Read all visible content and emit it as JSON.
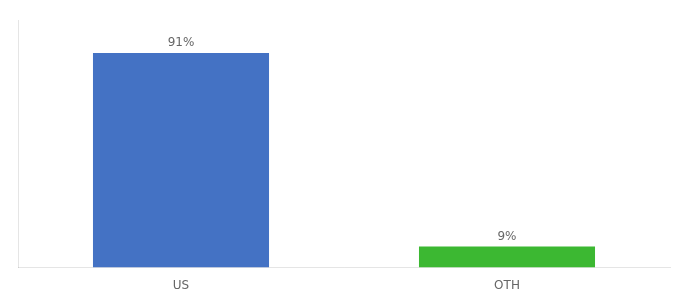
{
  "chart_data": {
    "type": "bar",
    "categories": [
      "US",
      "OTH"
    ],
    "values": [
      91,
      9
    ],
    "value_labels": [
      "91%",
      "9%"
    ],
    "colors": [
      "#4472c4",
      "#3cb832"
    ],
    "ylim": [
      0,
      105
    ],
    "grid": false,
    "data_labels": true,
    "tick_labels": "x"
  }
}
